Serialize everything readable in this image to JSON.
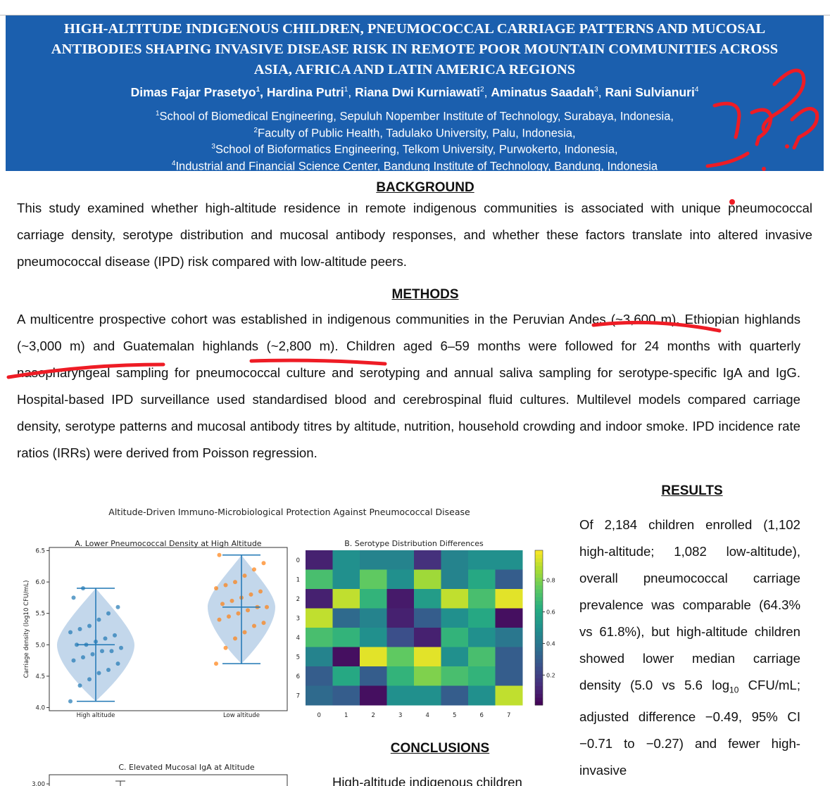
{
  "header": {
    "title_lines": [
      "HIGH-ALTITUDE INDIGENOUS CHILDREN, PNEUMOCOCCAL CARRIAGE PATTERNS AND MUCOSAL",
      "ANTIBODIES SHAPING INVASIVE DISEASE RISK IN REMOTE POOR MOUNTAIN COMMUNITIES ACROSS",
      "ASIA, AFRICA AND LATIN AMERICA REGIONS"
    ],
    "authors": [
      {
        "name": "Dimas Fajar Prasetyo",
        "sup": "1"
      },
      {
        "name": "Hardina Putri",
        "sup": "1"
      },
      {
        "name": "Riana Dwi Kurniawati",
        "sup": "2"
      },
      {
        "name": "Aminatus Saadah",
        "sup": "3"
      },
      {
        "name": "Rani Sulvianuri",
        "sup": "4"
      }
    ],
    "affiliations": [
      {
        "sup": "1",
        "text": "School of Biomedical Engineering, Sepuluh Nopember Institute of Technology, Surabaya, Indonesia,"
      },
      {
        "sup": "2",
        "text": "Faculty of Public Health, Tadulako University, Palu, Indonesia,"
      },
      {
        "sup": "3",
        "text": "School of Bioformatics Engineering, Telkom University, Purwokerto, Indonesia,"
      },
      {
        "sup": "4",
        "text": "Industrial and Financial Science Center, Bandung Institute of Technology, Bandung, Indonesia"
      }
    ]
  },
  "background": {
    "heading": "BACKGROUND",
    "text": "This study examined whether high-altitude residence in remote indigenous communities is associated with unique pneumococcal carriage density, serotype distribution and mucosal antibody responses, and whether these factors translate into altered invasive pneumococcal disease (IPD) risk compared with low-altitude peers."
  },
  "methods": {
    "heading": "METHODS",
    "text": "A multicentre prospective cohort was established in indigenous communities in the Peruvian Andes (~3,600 m), Ethiopian highlands (~3,000 m) and Guatemalan highlands (~2,800 m). Children aged 6–59 months were followed for 24 months with quarterly nasopharyngeal sampling for pneumococcal culture and serotyping and annual saliva sampling for serotype-specific IgA and IgG. Hospital-based IPD surveillance used standardised blood and cerebrospinal fluid cultures. Multilevel models compared carriage density, serotype patterns and mucosal antibody titres by altitude, nutrition, household crowding and indoor smoke. IPD incidence rate ratios (IRRs) were derived from Poisson regression."
  },
  "results": {
    "heading": "RESULTS",
    "text_before": "Of 2,184 children enrolled (1,102 high-altitude; 1,082 low-altitude), overall pneumococcal carriage prevalence was comparable (64.3% vs 61.8%), but high-altitude children showed lower median carriage density (5.0 vs 5.6 log",
    "text_sub": "10",
    "text_after": " CFU/mL; adjusted difference −0.49, 95% CI −0.71 to −0.27) and fewer high-invasive"
  },
  "conclusions": {
    "heading": "CONCLUSIONS",
    "text": "High-altitude indigenous children"
  },
  "figure": {
    "title": "Altitude-Driven Immuno-Microbiological Protection Against Pneumococcal Disease",
    "panel_a": {
      "title": "A. Lower Pneumococcal Density at High Altitude",
      "ylabel": "Carriage density (log10 CFU/mL)",
      "ylim": [
        3.95,
        6.55
      ],
      "yticks": [
        {
          "value": 4,
          "label": "4.0"
        },
        {
          "value": 4.5,
          "label": "4.5"
        },
        {
          "value": 5,
          "label": "5.0"
        },
        {
          "value": 5.5,
          "label": "5.5"
        },
        {
          "value": 6,
          "label": "6.0"
        },
        {
          "value": 6.5,
          "label": "6.5"
        }
      ],
      "groups": [
        {
          "name": "High altitude",
          "color": "#1f77b4",
          "min": 4.1,
          "median": 5.0,
          "max": 5.9,
          "points": [
            4.1,
            4.35,
            4.45,
            4.55,
            4.6,
            4.7,
            4.75,
            4.8,
            4.85,
            4.9,
            4.9,
            4.95,
            5.0,
            5.0,
            5.05,
            5.1,
            5.15,
            5.2,
            5.25,
            5.3,
            5.4,
            5.5,
            5.6,
            5.75,
            5.9
          ]
        },
        {
          "name": "Low altitude",
          "color": "#ff7f0e",
          "min": 4.7,
          "median": 5.6,
          "max": 6.43,
          "points": [
            4.7,
            4.95,
            5.1,
            5.2,
            5.3,
            5.35,
            5.4,
            5.45,
            5.5,
            5.55,
            5.6,
            5.6,
            5.65,
            5.7,
            5.75,
            5.8,
            5.85,
            5.9,
            5.95,
            6.0,
            6.1,
            6.2,
            6.3,
            6.43
          ]
        }
      ]
    },
    "panel_b": {
      "title": "B. Serotype Distribution Differences",
      "labels": [
        "0",
        "1",
        "2",
        "3",
        "4",
        "5",
        "6",
        "7"
      ],
      "clim": [
        0.01,
        0.99
      ],
      "cticks": [
        0.2,
        0.4,
        0.6,
        0.8
      ],
      "matrix": [
        [
          0.1,
          0.5,
          0.45,
          0.45,
          0.15,
          0.45,
          0.5,
          0.5
        ],
        [
          0.7,
          0.5,
          0.75,
          0.5,
          0.85,
          0.45,
          0.6,
          0.3
        ],
        [
          0.1,
          0.9,
          0.65,
          0.08,
          0.55,
          0.9,
          0.7,
          0.95
        ],
        [
          0.9,
          0.35,
          0.45,
          0.1,
          0.3,
          0.5,
          0.6,
          0.05
        ],
        [
          0.7,
          0.65,
          0.5,
          0.25,
          0.1,
          0.65,
          0.5,
          0.4
        ],
        [
          0.45,
          0.05,
          0.95,
          0.75,
          0.95,
          0.5,
          0.7,
          0.3
        ],
        [
          0.3,
          0.6,
          0.3,
          0.65,
          0.8,
          0.7,
          0.65,
          0.3
        ],
        [
          0.35,
          0.3,
          0.05,
          0.5,
          0.5,
          0.3,
          0.5,
          0.9
        ]
      ]
    },
    "panel_c": {
      "title": "C. Elevated Mucosal IgA at Altitude",
      "yticks": [
        {
          "value": 3,
          "label": "3.00"
        }
      ]
    }
  }
}
